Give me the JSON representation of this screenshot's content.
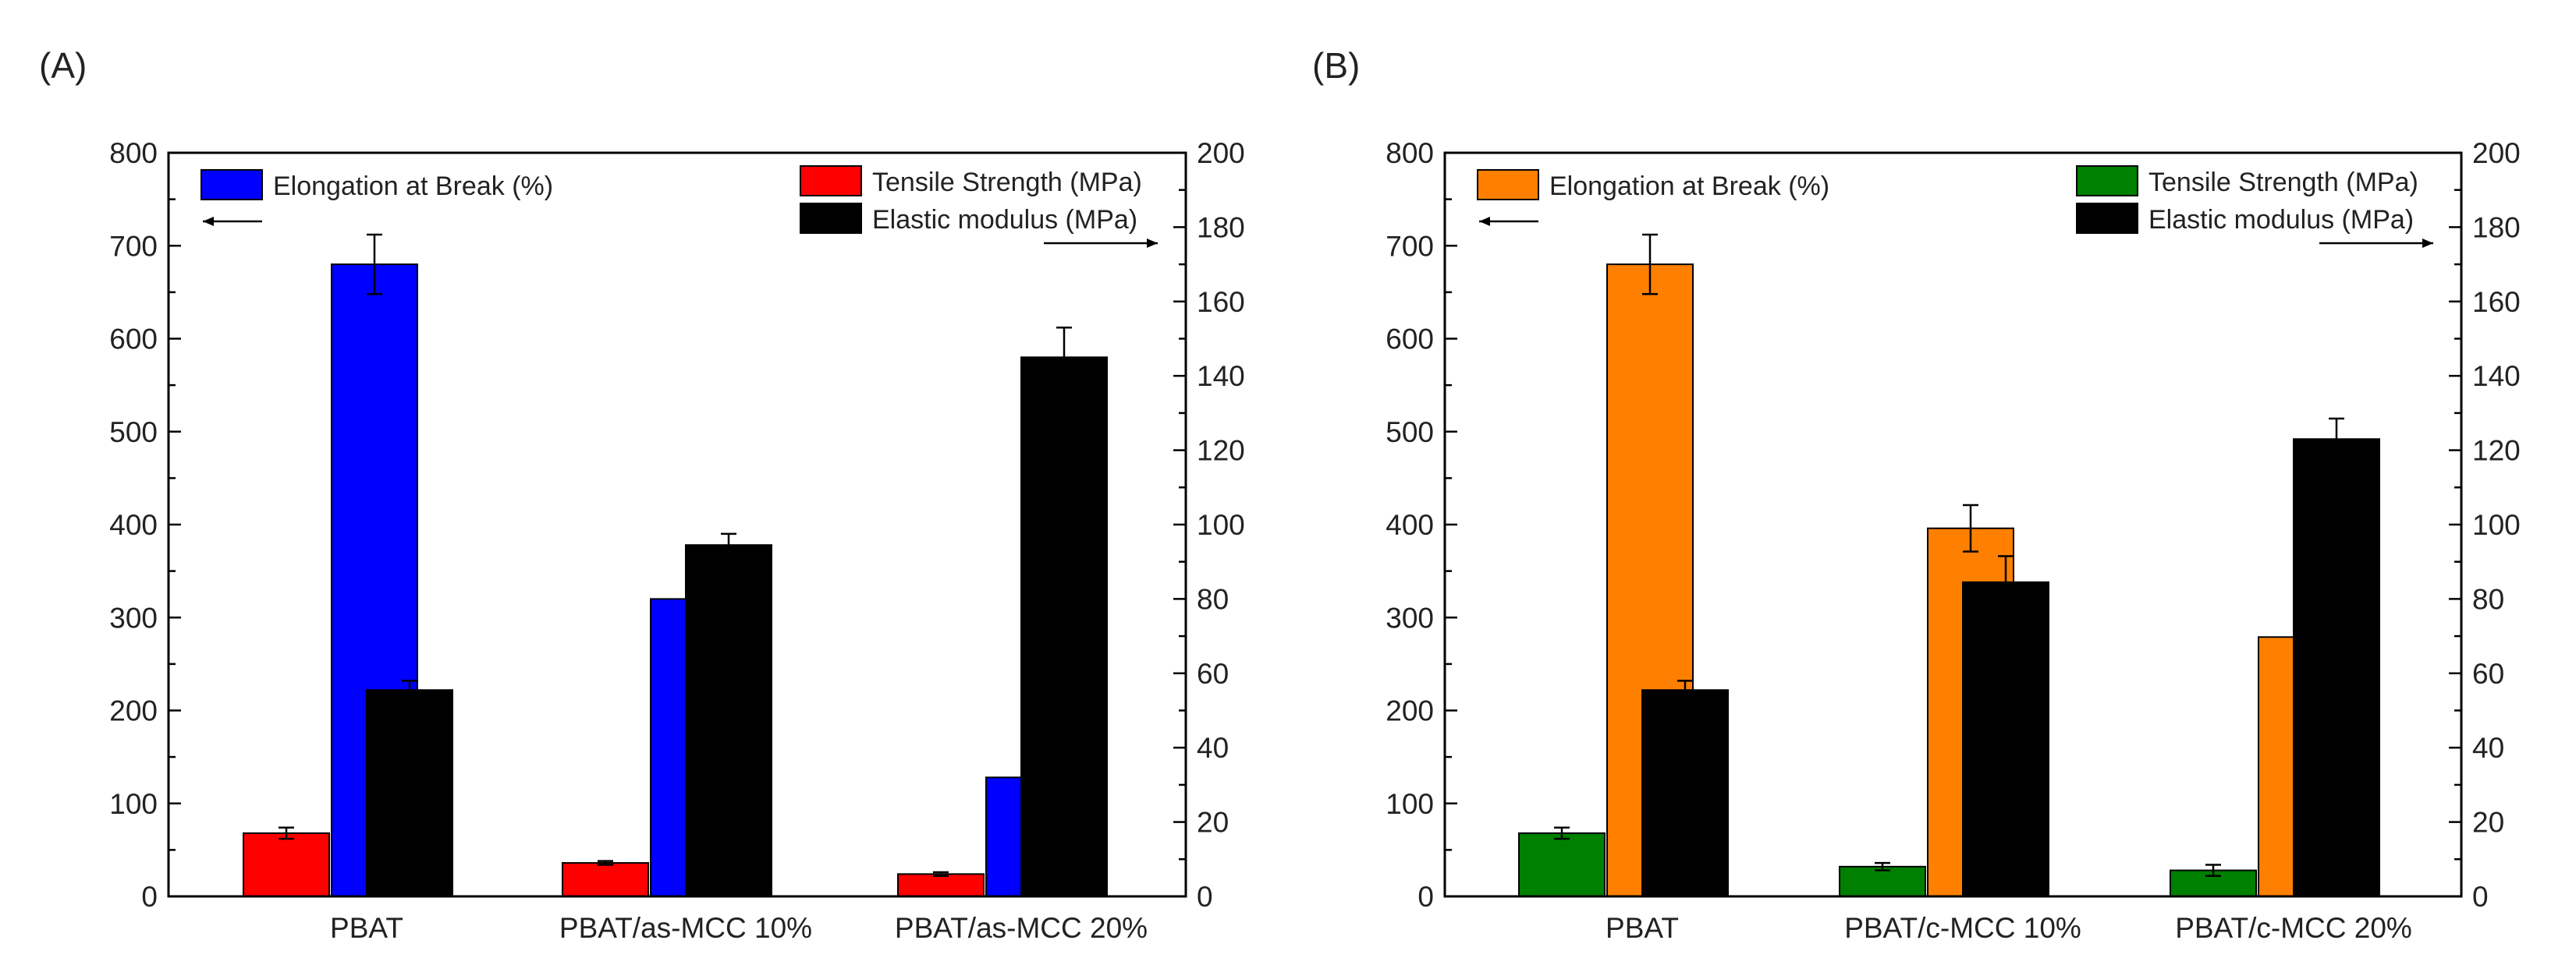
{
  "panels": [
    {
      "panel_label": "(A)",
      "chart_data": {
        "type": "bar",
        "categories": [
          "PBAT",
          "PBAT/as-MCC 10%",
          "PBAT/as-MCC 20%"
        ],
        "left_axis": {
          "ylim": [
            0,
            800
          ],
          "major_ticks": [
            0,
            100,
            200,
            300,
            400,
            500,
            600,
            700,
            800
          ],
          "minor_step": 50
        },
        "right_axis": {
          "ylim": [
            0,
            200
          ],
          "major_ticks": [
            0,
            20,
            40,
            60,
            80,
            100,
            120,
            140,
            160,
            180,
            200
          ],
          "minor_step": 10
        },
        "series": [
          {
            "name": "Tensile Strength (MPa)",
            "axis": "right",
            "color": "#ff0000",
            "values": [
              17,
              9,
              6
            ],
            "errors": [
              1.5,
              0.5,
              0.5
            ]
          },
          {
            "name": "Elongation at Break (%)",
            "axis": "left",
            "color": "#0000ff",
            "values": [
              680,
              320,
              128
            ],
            "errors": [
              32,
              38,
              18
            ]
          },
          {
            "name": "Elastic modulus (MPa)",
            "axis": "right",
            "color": "#000000",
            "values": [
              55.5,
              94.5,
              145
            ],
            "errors": [
              2.5,
              3,
              8
            ]
          }
        ],
        "legend_left": [
          "Elongation at Break (%)"
        ],
        "legend_right": [
          "Tensile Strength (MPa)",
          "Elastic modulus (MPa)"
        ]
      }
    },
    {
      "panel_label": "(B)",
      "chart_data": {
        "type": "bar",
        "categories": [
          "PBAT",
          "PBAT/c-MCC 10%",
          "PBAT/c-MCC 20%"
        ],
        "left_axis": {
          "ylim": [
            0,
            800
          ],
          "major_ticks": [
            0,
            100,
            200,
            300,
            400,
            500,
            600,
            700,
            800
          ],
          "minor_step": 50
        },
        "right_axis": {
          "ylim": [
            0,
            200
          ],
          "major_ticks": [
            0,
            20,
            40,
            60,
            80,
            100,
            120,
            140,
            160,
            180,
            200
          ],
          "minor_step": 10
        },
        "series": [
          {
            "name": "Tensile Strength (MPa)",
            "axis": "right",
            "color": "#008000",
            "values": [
              17,
              8,
              7
            ],
            "errors": [
              1.5,
              1,
              1.5
            ]
          },
          {
            "name": "Elongation at Break (%)",
            "axis": "left",
            "color": "#ff8000",
            "values": [
              680,
              396,
              279
            ],
            "errors": [
              32,
              25,
              18
            ]
          },
          {
            "name": "Elastic modulus (MPa)",
            "axis": "right",
            "color": "#000000",
            "values": [
              55.5,
              84.5,
              123
            ],
            "errors": [
              2.5,
              7,
              5.5
            ]
          }
        ],
        "legend_left": [
          "Elongation at Break (%)"
        ],
        "legend_right": [
          "Tensile Strength (MPa)",
          "Elastic modulus (MPa)"
        ]
      }
    }
  ]
}
